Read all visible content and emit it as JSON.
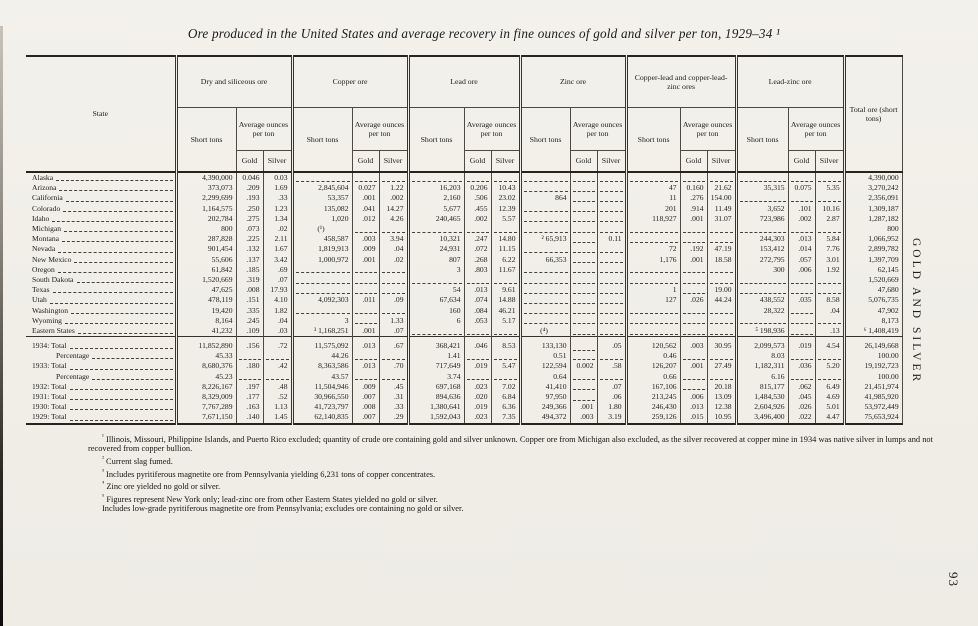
{
  "page": {
    "number": "93",
    "side_title": "GOLD AND SILVER"
  },
  "title": "Ore produced in the United States and average recovery in fine ounces of gold and silver per ton, 1929–34 ¹",
  "table": {
    "state_header": "State",
    "col_short_tons": "Short tons",
    "col_avg": "Average ounces per ton",
    "col_gold": "Gold",
    "col_silver": "Silver",
    "total_header": "Total ore (short tons)",
    "groups": [
      "Dry and siliceous ore",
      "Copper ore",
      "Lead ore",
      "Zinc ore",
      "Copper-lead and copper-lead-zinc ores",
      "Lead-zinc ore"
    ],
    "state_rows": [
      {
        "label": "Alaska",
        "cells": [
          "4,390,000",
          "0.046",
          "0.03",
          "",
          "",
          "",
          "",
          "",
          "",
          "",
          "",
          "",
          "",
          "",
          "",
          "",
          "",
          "",
          "4,390,000"
        ]
      },
      {
        "label": "Arizona",
        "cells": [
          "373,073",
          ".209",
          "1.69",
          "2,845,604",
          "0.027",
          "1.22",
          "16,203",
          "0.206",
          "10.43",
          "",
          "",
          "",
          "47",
          "0.160",
          "21.62",
          "35,315",
          "0.075",
          "5.35",
          "3,270,242"
        ]
      },
      {
        "label": "California",
        "cells": [
          "2,299,699",
          ".193",
          ".33",
          "53,357",
          ".001",
          ".002",
          "2,160",
          ".506",
          "23.02",
          "864",
          "",
          "",
          "11",
          ".276",
          "154.00",
          "",
          "",
          "",
          "2,356,091"
        ]
      },
      {
        "label": "Colorado",
        "cells": [
          "1,164,575",
          ".250",
          "1.23",
          "135,082",
          ".041",
          "14.27",
          "5,677",
          ".455",
          "12.39",
          "",
          "",
          "",
          "201",
          ".914",
          "11.49",
          "3,652",
          ".101",
          "10.16",
          "1,309,187"
        ]
      },
      {
        "label": "Idaho",
        "cells": [
          "202,784",
          ".275",
          "1.34",
          "1,020",
          ".012",
          "4.26",
          "240,465",
          ".002",
          "5.57",
          "",
          "",
          "",
          "118,927",
          ".001",
          "31.07",
          "723,986",
          ".002",
          "2.87",
          "1,287,182"
        ]
      },
      {
        "label": "Michigan",
        "cells": [
          "800",
          ".073",
          ".02",
          "(¹)",
          "",
          "",
          "",
          "",
          "",
          "",
          "",
          "",
          "",
          "",
          "",
          "",
          "",
          "",
          "800"
        ]
      },
      {
        "label": "Montana",
        "cells": [
          "287,828",
          ".225",
          "2.11",
          "458,587",
          ".003",
          "3.94",
          "10,321",
          ".247",
          "14.80",
          "² 65,913",
          "",
          "0.11",
          "",
          "",
          "",
          "244,303",
          ".013",
          "5.84",
          "1,066,952"
        ]
      },
      {
        "label": "Nevada",
        "cells": [
          "901,454",
          ".132",
          "1.67",
          "1,819,913",
          ".009",
          ".04",
          "24,931",
          ".072",
          "11.15",
          "",
          "",
          "",
          "72",
          ".192",
          "47.19",
          "153,412",
          ".014",
          "7.76",
          "2,899,782"
        ]
      },
      {
        "label": "New Mexico",
        "cells": [
          "55,606",
          ".137",
          "3.42",
          "1,000,972",
          ".001",
          ".02",
          "807",
          ".268",
          "6.22",
          "66,353",
          "",
          "",
          "1,176",
          ".001",
          "18.58",
          "272,795",
          ".057",
          "3.01",
          "1,397,709"
        ]
      },
      {
        "label": "Oregon",
        "cells": [
          "61,842",
          ".185",
          ".69",
          "",
          "",
          "",
          "3",
          ".803",
          "11.67",
          "",
          "",
          "",
          "",
          "",
          "",
          "300",
          ".006",
          "1.92",
          "62,145"
        ]
      },
      {
        "label": "South Dakota",
        "cells": [
          "1,520,669",
          ".319",
          ".07",
          "",
          "",
          "",
          "",
          "",
          "",
          "",
          "",
          "",
          "",
          "",
          "",
          "",
          "",
          "",
          "1,520,669"
        ]
      },
      {
        "label": "Texas",
        "cells": [
          "47,625",
          ".008",
          "17.93",
          "",
          "",
          "",
          "54",
          ".013",
          "9.61",
          "",
          "",
          "",
          "1",
          "",
          "19.00",
          "",
          "",
          "",
          "47,680"
        ]
      },
      {
        "label": "Utah",
        "cells": [
          "478,119",
          ".151",
          "4.10",
          "4,092,303",
          ".011",
          ".09",
          "67,634",
          ".074",
          "14.88",
          "",
          "",
          "",
          "127",
          ".026",
          "44.24",
          "438,552",
          ".035",
          "8.58",
          "5,076,735"
        ]
      },
      {
        "label": "Washington",
        "cells": [
          "19,420",
          ".335",
          "1.82",
          "",
          "",
          "",
          "160",
          ".084",
          "46.21",
          "",
          "",
          "",
          "",
          "",
          "",
          "28,322",
          "",
          ".04",
          "47,902"
        ]
      },
      {
        "label": "Wyoming",
        "cells": [
          "8,164",
          ".245",
          ".04",
          "3",
          "",
          "1.33",
          "6",
          ".053",
          "5.17",
          "",
          "",
          "",
          "",
          "",
          "",
          "",
          "",
          "",
          "8,173"
        ]
      },
      {
        "label": "Eastern States",
        "cells": [
          "41,232",
          ".109",
          ".03",
          "³ 1,168,251",
          ".001",
          ".07",
          "",
          "",
          "",
          "(⁴)",
          "",
          "",
          "",
          "",
          "",
          "⁵ 198,936",
          "",
          ".13",
          "⁶ 1,408,419"
        ]
      }
    ],
    "summary_rows": [
      {
        "label": "1934: Total",
        "indent": false,
        "cells": [
          "11,852,890",
          ".156",
          ".72",
          "11,575,092",
          ".013",
          ".67",
          "368,421",
          ".046",
          "8.53",
          "133,130",
          "",
          ".05",
          "120,562",
          ".003",
          "30.95",
          "2,099,573",
          ".019",
          "4.54",
          "26,149,668"
        ]
      },
      {
        "label": "Percentage",
        "indent": true,
        "cells": [
          "45.33",
          "",
          "",
          "44.26",
          "",
          "",
          "1.41",
          "",
          "",
          "0.51",
          "",
          "",
          "0.46",
          "",
          "",
          "8.03",
          "",
          "",
          "100.00"
        ]
      },
      {
        "label": "1933: Total",
        "indent": false,
        "cells": [
          "8,680,376",
          ".180",
          ".42",
          "8,363,586",
          ".013",
          ".70",
          "717,649",
          ".019",
          "5.47",
          "122,594",
          "0.002",
          ".58",
          "126,207",
          ".001",
          "27.49",
          "1,182,311",
          ".036",
          "5.20",
          "19,192,723"
        ]
      },
      {
        "label": "Percentage",
        "indent": true,
        "cells": [
          "45.23",
          "",
          "",
          "43.57",
          "",
          "",
          "3.74",
          "",
          "",
          "0.64",
          "",
          "",
          "0.66",
          "",
          "",
          "6.16",
          "",
          "",
          "100.00"
        ]
      },
      {
        "label": "1932: Total",
        "indent": false,
        "cells": [
          "8,226,167",
          ".197",
          ".48",
          "11,504,946",
          ".009",
          ".45",
          "697,168",
          ".023",
          "7.02",
          "41,410",
          "",
          ".07",
          "167,106",
          "",
          "20.18",
          "815,177",
          ".062",
          "6.49",
          "21,451,974"
        ]
      },
      {
        "label": "1931: Total",
        "indent": false,
        "cells": [
          "8,329,009",
          ".177",
          ".52",
          "30,966,550",
          ".007",
          ".31",
          "894,636",
          ".020",
          "6.84",
          "97,950",
          "",
          ".06",
          "213,245",
          ".006",
          "13.09",
          "1,484,530",
          ".045",
          "4.69",
          "41,985,920"
        ]
      },
      {
        "label": "1930: Total",
        "indent": false,
        "cells": [
          "7,767,289",
          ".163",
          "1.13",
          "41,723,797",
          ".008",
          ".33",
          "1,380,641",
          ".019",
          "6.36",
          "249,366",
          ".001",
          "1.80",
          "246,430",
          ".013",
          "12.38",
          "2,604,926",
          ".026",
          "5.01",
          "53,972,449"
        ]
      },
      {
        "label": "1929: Total",
        "indent": false,
        "cells": [
          "7,671,150",
          ".140",
          "1.45",
          "62,140,835",
          ".007",
          ".29",
          "1,592,043",
          ".023",
          "7.35",
          "494,372",
          ".003",
          "3.19",
          "259,126",
          ".015",
          "10.95",
          "3,496,400",
          ".022",
          "4.47",
          "75,653,924"
        ]
      }
    ]
  },
  "footnotes": [
    {
      "marker": "¹",
      "text": "Illinois, Missouri, Philippine Islands, and Puerto Rico excluded; quantity of crude ore containing gold and silver unknown.  Copper ore from Michigan also excluded, as the silver recovered at copper mine in 1934 was native silver in lumps and not recovered from copper bullion."
    },
    {
      "marker": "²",
      "text": "Current slag fumed."
    },
    {
      "marker": "³",
      "text": "Includes pyritiferous magnetite ore from Pennsylvania yielding 6,231 tons of copper concentrates."
    },
    {
      "marker": "⁴",
      "text": "Zinc ore yielded no gold or silver."
    },
    {
      "marker": "⁵",
      "text": "Figures represent New York only; lead-zinc ore from other Eastern States yielded no gold or silver."
    },
    {
      "marker": "",
      "text": "Includes low-grade pyritiferous magnetite ore from Pennsylvania; excludes ore containing no gold or silver."
    }
  ]
}
